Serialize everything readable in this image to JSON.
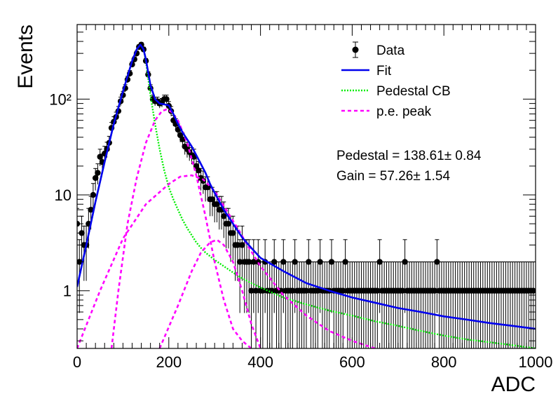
{
  "chart_data": {
    "type": "scatter",
    "xlabel": "ADC",
    "ylabel": "Events",
    "xlim": [
      0,
      1000
    ],
    "ylim": [
      0.25,
      600
    ],
    "yscale": "log",
    "grid": false,
    "legend_position": "top-right",
    "x_ticks": [
      {
        "v": 0,
        "label": "0"
      },
      {
        "v": 200,
        "label": "200"
      },
      {
        "v": 400,
        "label": "400"
      },
      {
        "v": 600,
        "label": "600"
      },
      {
        "v": 800,
        "label": "800"
      },
      {
        "v": 1000,
        "label": "1000"
      }
    ],
    "y_ticks": [
      {
        "v": 1,
        "label": "1"
      },
      {
        "v": 10,
        "label": "10"
      },
      {
        "v": 100,
        "label": "10²"
      }
    ],
    "legend": [
      {
        "label": "Data",
        "style": "marker",
        "color": "#000000"
      },
      {
        "label": "Fit",
        "style": "solid",
        "color": "#0000ee"
      },
      {
        "label": "Pedestal CB",
        "style": "dotted",
        "color": "#00ee00"
      },
      {
        "label": "p.e. peak",
        "style": "dashed",
        "color": "#ff00ff"
      }
    ],
    "annotations": [
      "Pedestal = 138.61± 0.84",
      "Gain = 57.26± 1.54"
    ],
    "data_points": [
      [
        0,
        5
      ],
      [
        5,
        2
      ],
      [
        10,
        4
      ],
      [
        15,
        3
      ],
      [
        20,
        3
      ],
      [
        25,
        5
      ],
      [
        30,
        7
      ],
      [
        35,
        10
      ],
      [
        40,
        15
      ],
      [
        45,
        17
      ],
      [
        50,
        25
      ],
      [
        55,
        22
      ],
      [
        60,
        27
      ],
      [
        65,
        30
      ],
      [
        70,
        35
      ],
      [
        75,
        50
      ],
      [
        80,
        58
      ],
      [
        85,
        65
      ],
      [
        90,
        75
      ],
      [
        95,
        95
      ],
      [
        100,
        110
      ],
      [
        105,
        130
      ],
      [
        110,
        160
      ],
      [
        115,
        185
      ],
      [
        120,
        230
      ],
      [
        125,
        260
      ],
      [
        130,
        300
      ],
      [
        135,
        350
      ],
      [
        140,
        370
      ],
      [
        145,
        330
      ],
      [
        150,
        250
      ],
      [
        155,
        180
      ],
      [
        160,
        130
      ],
      [
        165,
        100
      ],
      [
        170,
        95
      ],
      [
        175,
        95
      ],
      [
        180,
        90
      ],
      [
        185,
        92
      ],
      [
        190,
        100
      ],
      [
        195,
        100
      ],
      [
        200,
        85
      ],
      [
        205,
        75
      ],
      [
        210,
        60
      ],
      [
        215,
        55
      ],
      [
        220,
        48
      ],
      [
        225,
        42
      ],
      [
        230,
        38
      ],
      [
        235,
        32
      ],
      [
        240,
        30
      ],
      [
        245,
        28
      ],
      [
        250,
        26
      ],
      [
        255,
        25
      ],
      [
        260,
        20
      ],
      [
        265,
        18
      ],
      [
        270,
        15
      ],
      [
        275,
        14
      ],
      [
        280,
        12
      ],
      [
        285,
        12
      ],
      [
        290,
        9
      ],
      [
        295,
        9
      ],
      [
        300,
        8
      ],
      [
        305,
        8
      ],
      [
        310,
        7
      ],
      [
        315,
        7
      ],
      [
        320,
        6
      ],
      [
        325,
        5
      ],
      [
        330,
        5
      ],
      [
        335,
        4
      ],
      [
        340,
        4
      ],
      [
        345,
        3
      ],
      [
        350,
        3
      ],
      [
        355,
        2
      ],
      [
        360,
        3
      ],
      [
        365,
        2
      ],
      [
        370,
        2
      ],
      [
        375,
        2
      ],
      [
        380,
        1
      ],
      [
        385,
        2
      ],
      [
        390,
        1
      ],
      [
        395,
        2
      ],
      [
        400,
        1
      ],
      [
        405,
        1
      ],
      [
        410,
        2
      ],
      [
        415,
        1
      ],
      [
        420,
        1
      ],
      [
        425,
        1
      ],
      [
        430,
        2
      ],
      [
        435,
        1
      ],
      [
        440,
        1
      ],
      [
        445,
        1
      ],
      [
        450,
        2
      ],
      [
        455,
        1
      ],
      [
        460,
        1
      ],
      [
        465,
        1
      ],
      [
        470,
        1
      ],
      [
        475,
        2
      ],
      [
        480,
        1
      ],
      [
        485,
        1
      ],
      [
        490,
        1
      ],
      [
        495,
        1
      ],
      [
        500,
        1
      ],
      [
        505,
        2
      ],
      [
        510,
        1
      ],
      [
        515,
        1
      ],
      [
        520,
        1
      ],
      [
        525,
        1
      ],
      [
        530,
        2
      ],
      [
        535,
        1
      ],
      [
        540,
        1
      ],
      [
        545,
        1
      ],
      [
        550,
        1
      ],
      [
        555,
        2
      ],
      [
        560,
        1
      ],
      [
        565,
        1
      ],
      [
        570,
        1
      ],
      [
        575,
        1
      ],
      [
        580,
        1
      ],
      [
        585,
        2
      ],
      [
        590,
        1
      ],
      [
        595,
        1
      ],
      [
        600,
        1
      ],
      [
        605,
        1
      ],
      [
        610,
        1
      ],
      [
        615,
        1
      ],
      [
        620,
        1
      ],
      [
        625,
        1
      ],
      [
        630,
        1
      ],
      [
        635,
        1
      ],
      [
        640,
        1
      ],
      [
        645,
        1
      ],
      [
        650,
        1
      ],
      [
        655,
        1
      ],
      [
        660,
        2
      ],
      [
        665,
        1
      ],
      [
        670,
        1
      ],
      [
        675,
        1
      ],
      [
        680,
        1
      ],
      [
        685,
        1
      ],
      [
        690,
        1
      ],
      [
        695,
        1
      ],
      [
        700,
        1
      ],
      [
        705,
        1
      ],
      [
        710,
        1
      ],
      [
        715,
        2
      ],
      [
        720,
        1
      ],
      [
        725,
        1
      ],
      [
        730,
        1
      ],
      [
        735,
        1
      ],
      [
        740,
        1
      ],
      [
        745,
        1
      ],
      [
        750,
        1
      ],
      [
        755,
        1
      ],
      [
        760,
        1
      ],
      [
        765,
        1
      ],
      [
        770,
        1
      ],
      [
        775,
        1
      ],
      [
        780,
        1
      ],
      [
        785,
        2
      ],
      [
        790,
        1
      ],
      [
        795,
        1
      ],
      [
        800,
        1
      ],
      [
        805,
        1
      ],
      [
        810,
        1
      ],
      [
        815,
        1
      ],
      [
        820,
        1
      ],
      [
        825,
        1
      ],
      [
        830,
        1
      ],
      [
        835,
        1
      ],
      [
        840,
        1
      ],
      [
        845,
        1
      ],
      [
        850,
        1
      ],
      [
        855,
        1
      ],
      [
        860,
        1
      ],
      [
        865,
        1
      ],
      [
        870,
        1
      ],
      [
        875,
        1
      ],
      [
        880,
        1
      ],
      [
        885,
        1
      ],
      [
        890,
        1
      ],
      [
        895,
        1
      ],
      [
        900,
        1
      ],
      [
        905,
        1
      ],
      [
        910,
        1
      ],
      [
        915,
        1
      ],
      [
        920,
        1
      ],
      [
        925,
        1
      ],
      [
        930,
        1
      ],
      [
        935,
        1
      ],
      [
        940,
        1
      ],
      [
        945,
        1
      ],
      [
        950,
        1
      ],
      [
        955,
        1
      ],
      [
        960,
        1
      ],
      [
        965,
        1
      ],
      [
        970,
        1
      ],
      [
        975,
        1
      ],
      [
        980,
        1
      ],
      [
        985,
        1
      ],
      [
        990,
        1
      ],
      [
        995,
        1
      ]
    ],
    "series": [
      {
        "name": "Fit",
        "color": "#0000ee",
        "x": [
          0,
          20,
          40,
          60,
          80,
          100,
          120,
          130,
          138,
          145,
          150,
          160,
          170,
          180,
          190,
          200,
          210,
          220,
          230,
          240,
          250,
          260,
          270,
          280,
          290,
          300,
          320,
          340,
          360,
          380,
          400,
          450,
          500,
          550,
          600,
          650,
          700,
          750,
          800,
          850,
          900,
          950,
          1000
        ],
        "y": [
          1.1,
          3,
          8.5,
          22,
          55,
          120,
          250,
          330,
          370,
          330,
          260,
          140,
          100,
          90,
          88,
          86,
          70,
          55,
          45,
          38,
          32,
          26,
          21,
          17,
          13,
          10.5,
          7,
          5,
          3.6,
          2.8,
          2.2,
          1.6,
          1.2,
          1.0,
          0.85,
          0.75,
          0.66,
          0.6,
          0.54,
          0.5,
          0.46,
          0.43,
          0.4
        ]
      },
      {
        "name": "Pedestal CB",
        "color": "#00ee00",
        "x": [
          0,
          20,
          40,
          60,
          80,
          100,
          120,
          130,
          138,
          145,
          150,
          160,
          170,
          180,
          190,
          200,
          210,
          220,
          230,
          240,
          250,
          260,
          270,
          280,
          300,
          320,
          340,
          360,
          380,
          400,
          450,
          500,
          550,
          600,
          650,
          700,
          750,
          800,
          850,
          900,
          950,
          1000
        ],
        "y": [
          1.1,
          3,
          8.5,
          22,
          55,
          120,
          250,
          330,
          370,
          330,
          250,
          110,
          55,
          30,
          18,
          12,
          9,
          7,
          5.5,
          4.5,
          3.8,
          3.2,
          2.8,
          2.5,
          2.1,
          1.8,
          1.55,
          1.35,
          1.2,
          1.08,
          0.85,
          0.72,
          0.62,
          0.55,
          0.48,
          0.43,
          0.38,
          0.34,
          0.31,
          0.29,
          0.27,
          0.25
        ]
      },
      {
        "name": "p.e. peak 1",
        "color": "#ff00ff",
        "x": [
          75,
          90,
          110,
          130,
          150,
          170,
          185,
          195,
          205,
          220,
          240,
          260,
          280,
          300,
          320,
          340,
          360,
          380
        ],
        "y": [
          0.25,
          1,
          5,
          15,
          35,
          60,
          75,
          78,
          74,
          60,
          35,
          16,
          6,
          2,
          0.8,
          0.4,
          0.3,
          0.25
        ]
      },
      {
        "name": "p.e. peak 2",
        "color": "#ff00ff",
        "x": [
          0,
          50,
          100,
          150,
          200,
          225,
          250,
          275,
          300,
          325,
          350,
          375,
          400,
          450,
          500,
          550,
          600,
          650
        ],
        "y": [
          0.25,
          1,
          3.5,
          8,
          13,
          15.5,
          16,
          14.5,
          11,
          7,
          4.5,
          2.8,
          1.8,
          0.9,
          0.55,
          0.38,
          0.3,
          0.25
        ]
      },
      {
        "name": "p.e. peak 3",
        "color": "#ff00ff",
        "x": [
          180,
          220,
          250,
          270,
          290,
          305,
          320,
          340,
          360,
          380,
          400
        ],
        "y": [
          0.25,
          0.7,
          1.6,
          2.5,
          3.2,
          3.4,
          3.0,
          2.0,
          1.0,
          0.45,
          0.25
        ]
      }
    ]
  }
}
